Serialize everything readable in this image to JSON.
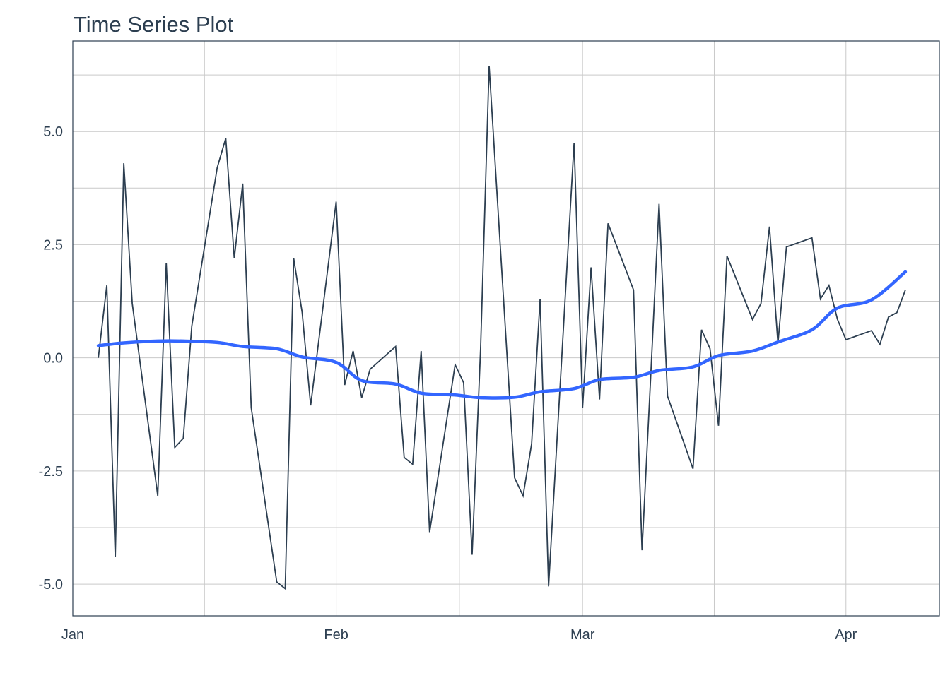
{
  "chart_data": {
    "type": "line",
    "title": "Time Series Plot",
    "xlabel": "",
    "ylabel": "",
    "x_unit": "date",
    "xlim": [
      "2016-01-01",
      "2016-04-12"
    ],
    "ylim": [
      -5.7,
      7.0
    ],
    "x_ticks": [
      {
        "date": "2016-01-01",
        "label": "Jan"
      },
      {
        "date": "2016-02-01",
        "label": "Feb"
      },
      {
        "date": "2016-03-01",
        "label": "Mar"
      },
      {
        "date": "2016-04-01",
        "label": "Apr"
      }
    ],
    "y_ticks": [
      {
        "value": -5.0,
        "label": "-5.0"
      },
      {
        "value": -2.5,
        "label": "-2.5"
      },
      {
        "value": 0.0,
        "label": "0.0"
      },
      {
        "value": 2.5,
        "label": "2.5"
      },
      {
        "value": 5.0,
        "label": "5.0"
      }
    ],
    "grid": true,
    "legend": "none",
    "series": [
      {
        "color": "#2c3e50",
        "style": "line",
        "x": [
          "2016-01-04",
          "2016-01-05",
          "2016-01-06",
          "2016-01-07",
          "2016-01-08",
          "2016-01-11",
          "2016-01-12",
          "2016-01-13",
          "2016-01-14",
          "2016-01-15",
          "2016-01-18",
          "2016-01-19",
          "2016-01-20",
          "2016-01-21",
          "2016-01-22",
          "2016-01-25",
          "2016-01-26",
          "2016-01-27",
          "2016-01-28",
          "2016-01-29",
          "2016-02-01",
          "2016-02-02",
          "2016-02-03",
          "2016-02-04",
          "2016-02-05",
          "2016-02-08",
          "2016-02-09",
          "2016-02-10",
          "2016-02-11",
          "2016-02-12",
          "2016-02-15",
          "2016-02-16",
          "2016-02-17",
          "2016-02-18",
          "2016-02-19",
          "2016-02-22",
          "2016-02-23",
          "2016-02-24",
          "2016-02-25",
          "2016-02-26",
          "2016-02-29",
          "2016-03-01",
          "2016-03-02",
          "2016-03-03",
          "2016-03-04",
          "2016-03-07",
          "2016-03-08",
          "2016-03-09",
          "2016-03-10",
          "2016-03-11",
          "2016-03-14",
          "2016-03-15",
          "2016-03-16",
          "2016-03-17",
          "2016-03-18",
          "2016-03-21",
          "2016-03-22",
          "2016-03-23",
          "2016-03-24",
          "2016-03-25",
          "2016-03-28",
          "2016-03-29",
          "2016-03-30",
          "2016-03-31",
          "2016-04-01",
          "2016-04-04",
          "2016-04-05",
          "2016-04-06",
          "2016-04-07",
          "2016-04-08"
        ],
        "y": [
          0.0,
          1.6,
          -4.4,
          4.3,
          1.2,
          -3.05,
          2.1,
          -1.98,
          -1.78,
          0.7,
          4.2,
          4.85,
          2.2,
          3.85,
          -1.1,
          -4.95,
          -5.1,
          2.2,
          1.0,
          -1.05,
          3.45,
          -0.6,
          0.15,
          -0.88,
          -0.25,
          0.25,
          -2.2,
          -2.35,
          0.15,
          -3.85,
          -0.15,
          -0.55,
          -4.35,
          0.2,
          6.45,
          -2.65,
          -3.05,
          -1.9,
          1.3,
          -5.05,
          4.75,
          -1.1,
          2.0,
          -0.92,
          2.97,
          1.5,
          -4.25,
          -0.5,
          3.4,
          -0.85,
          -2.45,
          0.62,
          0.2,
          -1.5,
          2.25,
          0.85,
          1.2,
          2.9,
          0.32,
          2.45,
          2.65,
          1.3,
          1.6,
          0.85,
          0.4,
          0.6,
          0.3,
          0.9,
          1.0,
          1.5
        ]
      },
      {
        "color": "#3366ff",
        "style": "smooth",
        "x": [
          "2016-01-04",
          "2016-01-07",
          "2016-01-11",
          "2016-01-14",
          "2016-01-18",
          "2016-01-21",
          "2016-01-25",
          "2016-01-28",
          "2016-02-01",
          "2016-02-04",
          "2016-02-08",
          "2016-02-11",
          "2016-02-15",
          "2016-02-18",
          "2016-02-22",
          "2016-02-25",
          "2016-02-29",
          "2016-03-03",
          "2016-03-07",
          "2016-03-10",
          "2016-03-14",
          "2016-03-17",
          "2016-03-21",
          "2016-03-24",
          "2016-03-28",
          "2016-03-31",
          "2016-04-04",
          "2016-04-08"
        ],
        "y": [
          0.27,
          0.33,
          0.37,
          0.37,
          0.34,
          0.25,
          0.2,
          0.02,
          -0.1,
          -0.5,
          -0.58,
          -0.78,
          -0.82,
          -0.88,
          -0.87,
          -0.75,
          -0.68,
          -0.48,
          -0.43,
          -0.28,
          -0.2,
          0.05,
          0.15,
          0.35,
          0.62,
          1.1,
          1.28,
          1.9
        ]
      }
    ]
  }
}
